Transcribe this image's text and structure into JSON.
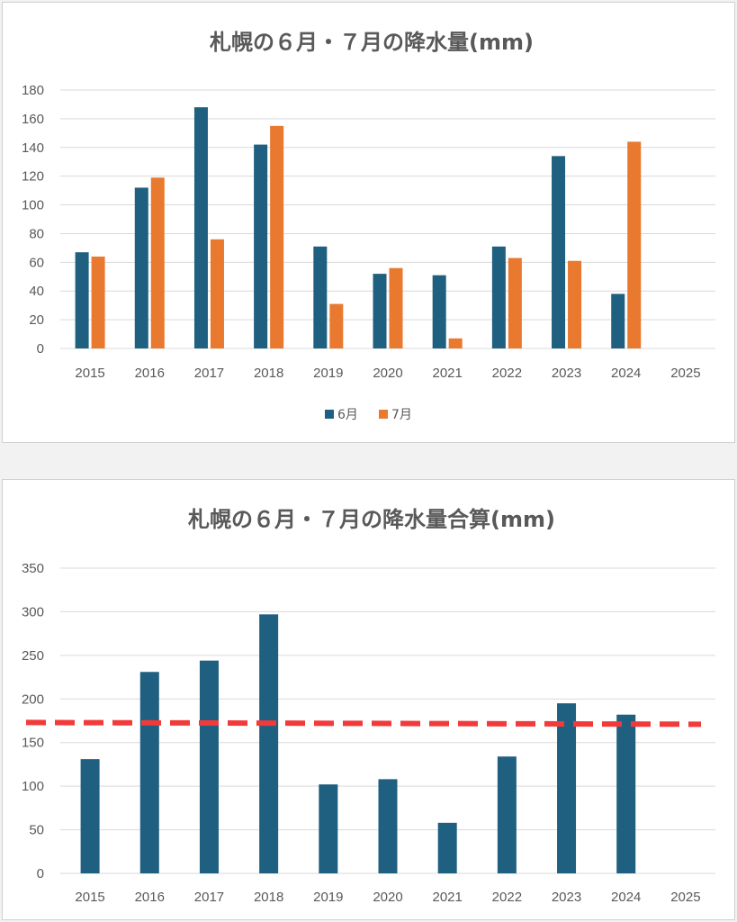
{
  "chart_data": [
    {
      "type": "bar",
      "title": "札幌の６月・７月の降水量(mm)",
      "categories": [
        "2015",
        "2016",
        "2017",
        "2018",
        "2019",
        "2020",
        "2021",
        "2022",
        "2023",
        "2024",
        "2025"
      ],
      "series": [
        {
          "name": "6月",
          "color": "#1f5f7f",
          "values": [
            67,
            112,
            168,
            142,
            71,
            52,
            51,
            71,
            134,
            38,
            null
          ]
        },
        {
          "name": "7月",
          "color": "#e8792f",
          "values": [
            64,
            119,
            76,
            155,
            31,
            56,
            7,
            63,
            61,
            144,
            null
          ]
        }
      ],
      "ylim": [
        0,
        180
      ],
      "yticks": [
        0,
        20,
        40,
        60,
        80,
        100,
        120,
        140,
        160,
        180
      ],
      "grid": true,
      "legend": "bottom"
    },
    {
      "type": "bar",
      "title": "札幌の６月・７月の降水量合算(mm)",
      "categories": [
        "2015",
        "2016",
        "2017",
        "2018",
        "2019",
        "2020",
        "2021",
        "2022",
        "2023",
        "2024",
        "2025"
      ],
      "series": [
        {
          "color": "#1f5f7f",
          "values": [
            131,
            231,
            244,
            297,
            102,
            108,
            58,
            134,
            195,
            182,
            null
          ]
        }
      ],
      "reference_line": {
        "color": "#f23a3a",
        "style": "dashed",
        "y_start": 173,
        "y_end": 171
      },
      "ylim": [
        0,
        350
      ],
      "yticks": [
        0,
        50,
        100,
        150,
        200,
        250,
        300,
        350
      ],
      "grid": true
    }
  ]
}
